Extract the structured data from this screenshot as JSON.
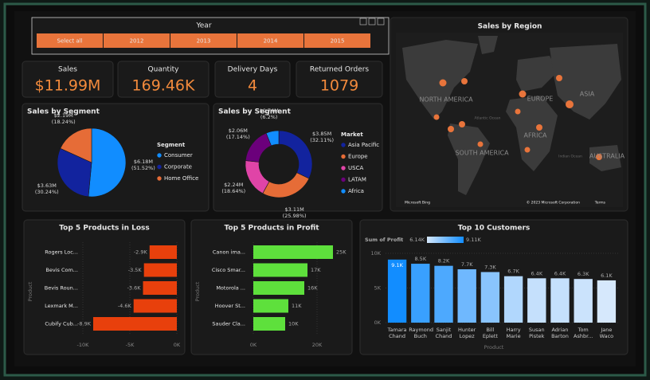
{
  "slicer": {
    "title": "Year",
    "options": [
      "Select all",
      "2012",
      "2013",
      "2014",
      "2015"
    ]
  },
  "kpis": [
    {
      "label": "Sales",
      "value": "$11.99M"
    },
    {
      "label": "Quantity",
      "value": "169.46K"
    },
    {
      "label": "Delivery Days",
      "value": "4"
    },
    {
      "label": "Returned Orders",
      "value": "1079"
    }
  ],
  "map": {
    "title": "Sales by Region",
    "labels": [
      "NORTH AMERICA",
      "EUROPE",
      "ASIA",
      "AFRICA",
      "SOUTH AMERICA",
      "AUSTRALIA",
      "Atlantic Ocean",
      "Indian Ocean"
    ],
    "attribution": "Microsoft Bing",
    "copyright": "© 2023 Microsoft Corporation",
    "terms": "Terms"
  },
  "chart_data": [
    {
      "type": "pie",
      "title": "Sales by Segment",
      "legend_title": "Segment",
      "categories": [
        "Consumer",
        "Corporate",
        "Home Office"
      ],
      "values": [
        6.18,
        3.63,
        2.19
      ],
      "value_labels": [
        "$6.18M (51.52%)",
        "$3.63M (30.24%)",
        "$2.19M (18.24%)"
      ],
      "colors": [
        "#118dff",
        "#12239e",
        "#e66c37"
      ]
    },
    {
      "type": "donut",
      "title": "Sales by Segment",
      "legend_title": "Market",
      "categories": [
        "Asia Pacific",
        "Europe",
        "USCA",
        "LATAM",
        "Africa"
      ],
      "values": [
        3.85,
        3.11,
        2.24,
        2.06,
        0.74
      ],
      "value_labels": [
        "$3.85M (32.11%)",
        "$3.11M (25.98%)",
        "$2.24M (18.64%)",
        "$2.06M (17.14%)",
        "$0.74M (6.2%)"
      ],
      "colors": [
        "#12239e",
        "#e66c37",
        "#e044a7",
        "#6b007b",
        "#118dff"
      ]
    },
    {
      "type": "hbar",
      "title": "Top 5 Products in Loss",
      "y_label": "Product",
      "categories": [
        "Rogers Loc...",
        "Bevis Com...",
        "Bevis Roun...",
        "Lexmark M...",
        "Cubify Cub..."
      ],
      "values": [
        -2900,
        -3500,
        -3600,
        -4600,
        -8900
      ],
      "value_labels": [
        "-2.9K",
        "-3.5K",
        "-3.6K",
        "-4.6K",
        "-8.9K"
      ],
      "color": "#e8400c",
      "xlim": [
        -10000,
        0
      ],
      "xticks": [
        {
          "value": -10000,
          "label": "-10K"
        },
        {
          "value": -5000,
          "label": "-5K"
        },
        {
          "value": 0,
          "label": "0K"
        }
      ]
    },
    {
      "type": "hbar",
      "title": "Top 5 Products in Profit",
      "y_label": "Product",
      "categories": [
        "Canon ima...",
        "Cisco Smar...",
        "Motorola ...",
        "Hoover St...",
        "Sauder Cla..."
      ],
      "values": [
        25000,
        17000,
        16000,
        11000,
        10000
      ],
      "value_labels": [
        "25K",
        "17K",
        "16K",
        "11K",
        "10K"
      ],
      "color": "#5ee03c",
      "xlim": [
        0,
        27000
      ],
      "xticks": [
        {
          "value": 0,
          "label": "0K"
        },
        {
          "value": 20000,
          "label": "20K"
        }
      ]
    },
    {
      "type": "column",
      "title": "Top 10 Customers",
      "x_label": "Product",
      "categories": [
        "Tamara Chand",
        "Raymond Buch",
        "Sanjit Chand",
        "Hunter Lopez",
        "Bill Eplett",
        "Harry Marie",
        "Susan Pistek",
        "Adrian Barton",
        "Tom Ashbr...",
        "Jane Waco"
      ],
      "values": [
        9100,
        8500,
        8200,
        7700,
        7300,
        6700,
        6400,
        6400,
        6300,
        6100
      ],
      "value_labels": [
        "9.1K",
        "8.5K",
        "8.2K",
        "7.7K",
        "7.3K",
        "6.7K",
        "6.4K",
        "6.4K",
        "6.3K",
        "6.1K"
      ],
      "color_scale": {
        "title": "Sum of Profit",
        "min": {
          "value": 6140,
          "label": "6.14K"
        },
        "max": {
          "value": 9110,
          "label": "9.11K"
        },
        "colors": [
          "#d6e8fc",
          "#118dff"
        ]
      },
      "ylim": [
        0,
        10000
      ],
      "yticks": [
        {
          "value": 0,
          "label": "0K"
        },
        {
          "value": 5000,
          "label": "5K"
        },
        {
          "value": 10000,
          "label": "10K"
        }
      ]
    }
  ]
}
